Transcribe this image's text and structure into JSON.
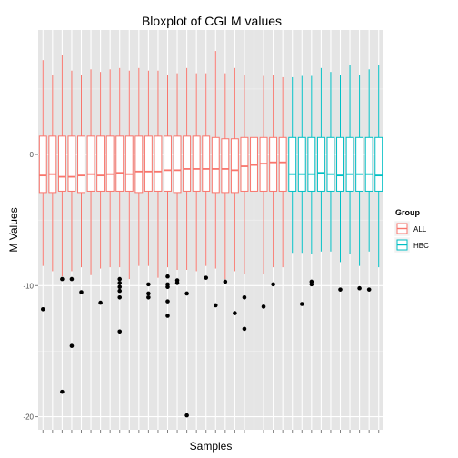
{
  "chart_data": {
    "type": "boxplot",
    "title": "Bloxplot of CGI M values",
    "xlabel": "Samples",
    "ylabel": "M Values",
    "ylim": [
      -21,
      9.5
    ],
    "yticks": [
      0,
      -10,
      -20
    ],
    "ytick_labels": [
      "0",
      "-10",
      "-20"
    ],
    "grid": true,
    "legend": {
      "title": "Group",
      "position": "right",
      "entries": [
        {
          "label": "ALL",
          "color": "#F8766D"
        },
        {
          "label": "HBC",
          "color": "#00BFC4"
        }
      ]
    },
    "n_samples": 36,
    "groups": [
      "ALL",
      "ALL",
      "ALL",
      "ALL",
      "ALL",
      "ALL",
      "ALL",
      "ALL",
      "ALL",
      "ALL",
      "ALL",
      "ALL",
      "ALL",
      "ALL",
      "ALL",
      "ALL",
      "ALL",
      "ALL",
      "ALL",
      "ALL",
      "ALL",
      "ALL",
      "ALL",
      "ALL",
      "ALL",
      "ALL",
      "HBC",
      "HBC",
      "HBC",
      "HBC",
      "HBC",
      "HBC",
      "HBC",
      "HBC",
      "HBC",
      "HBC"
    ],
    "whisker_high": [
      7.2,
      6.1,
      7.6,
      6.4,
      6.1,
      6.5,
      6.3,
      6.5,
      6.6,
      6.4,
      6.6,
      6.4,
      6.4,
      6.1,
      6.2,
      6.6,
      6.2,
      6.2,
      7.9,
      6.2,
      6.6,
      6.1,
      6.1,
      6.0,
      6.1,
      5.9,
      5.9,
      6.0,
      6.0,
      6.6,
      6.3,
      6.1,
      6.8,
      6.1,
      6.5,
      6.8
    ],
    "q3": [
      1.4,
      1.4,
      1.4,
      1.4,
      1.4,
      1.4,
      1.4,
      1.4,
      1.4,
      1.4,
      1.4,
      1.4,
      1.4,
      1.4,
      1.4,
      1.4,
      1.4,
      1.4,
      1.3,
      1.2,
      1.2,
      1.3,
      1.3,
      1.3,
      1.3,
      1.3,
      1.3,
      1.3,
      1.3,
      1.3,
      1.3,
      1.3,
      1.3,
      1.3,
      1.3,
      1.3
    ],
    "median": [
      -1.6,
      -1.5,
      -1.7,
      -1.7,
      -1.6,
      -1.5,
      -1.6,
      -1.5,
      -1.4,
      -1.5,
      -1.3,
      -1.3,
      -1.3,
      -1.2,
      -1.2,
      -1.1,
      -1.1,
      -1.1,
      -1.1,
      -1.1,
      -1.2,
      -0.9,
      -0.8,
      -0.7,
      -0.6,
      -0.6,
      -1.5,
      -1.5,
      -1.5,
      -1.4,
      -1.5,
      -1.6,
      -1.5,
      -1.5,
      -1.5,
      -1.6
    ],
    "q1": [
      -2.9,
      -2.9,
      -2.8,
      -2.8,
      -2.9,
      -2.8,
      -2.8,
      -2.8,
      -2.8,
      -2.8,
      -2.9,
      -2.8,
      -2.8,
      -2.8,
      -2.9,
      -2.8,
      -2.8,
      -2.8,
      -2.9,
      -2.9,
      -2.9,
      -2.8,
      -2.8,
      -2.8,
      -2.8,
      -2.8,
      -2.8,
      -2.8,
      -2.8,
      -2.8,
      -2.8,
      -2.8,
      -2.8,
      -2.8,
      -2.8,
      -2.8
    ],
    "whisker_low": [
      -8.5,
      -8.9,
      -9.3,
      -8.9,
      -8.6,
      -9.2,
      -8.7,
      -8.6,
      -8.6,
      -9.5,
      -8.5,
      -8.5,
      -9.4,
      -8.6,
      -8.8,
      -8.8,
      -8.9,
      -8.5,
      -8.7,
      -9.5,
      -8.9,
      -9.1,
      -8.9,
      -9.1,
      -8.6,
      -8.6,
      -7.5,
      -7.5,
      -7.6,
      -7.4,
      -7.4,
      -8.2,
      -7.6,
      -8.5,
      -7.4,
      -8.6
    ],
    "outliers": [
      {
        "sample": 1,
        "value": -11.8
      },
      {
        "sample": 3,
        "value": -9.5
      },
      {
        "sample": 3,
        "value": -18.1
      },
      {
        "sample": 4,
        "value": -9.5
      },
      {
        "sample": 4,
        "value": -14.6
      },
      {
        "sample": 5,
        "value": -10.5
      },
      {
        "sample": 7,
        "value": -11.3
      },
      {
        "sample": 9,
        "value": -9.5
      },
      {
        "sample": 9,
        "value": -9.8
      },
      {
        "sample": 9,
        "value": -10.1
      },
      {
        "sample": 9,
        "value": -10.4
      },
      {
        "sample": 9,
        "value": -10.9
      },
      {
        "sample": 9,
        "value": -13.5
      },
      {
        "sample": 12,
        "value": -9.9
      },
      {
        "sample": 12,
        "value": -10.6
      },
      {
        "sample": 12,
        "value": -10.9
      },
      {
        "sample": 14,
        "value": -9.3
      },
      {
        "sample": 14,
        "value": -9.9
      },
      {
        "sample": 14,
        "value": -10.1
      },
      {
        "sample": 14,
        "value": -11.2
      },
      {
        "sample": 14,
        "value": -12.3
      },
      {
        "sample": 15,
        "value": -9.8
      },
      {
        "sample": 15,
        "value": -9.6
      },
      {
        "sample": 16,
        "value": -10.6
      },
      {
        "sample": 16,
        "value": -19.9
      },
      {
        "sample": 18,
        "value": -9.4
      },
      {
        "sample": 19,
        "value": -11.5
      },
      {
        "sample": 20,
        "value": -9.7
      },
      {
        "sample": 21,
        "value": -12.1
      },
      {
        "sample": 22,
        "value": -10.9
      },
      {
        "sample": 22,
        "value": -13.3
      },
      {
        "sample": 24,
        "value": -11.6
      },
      {
        "sample": 25,
        "value": -9.9
      },
      {
        "sample": 28,
        "value": -11.4
      },
      {
        "sample": 29,
        "value": -9.9
      },
      {
        "sample": 29,
        "value": -9.7
      },
      {
        "sample": 32,
        "value": -10.3
      },
      {
        "sample": 34,
        "value": -10.2
      },
      {
        "sample": 35,
        "value": -10.3
      }
    ]
  }
}
